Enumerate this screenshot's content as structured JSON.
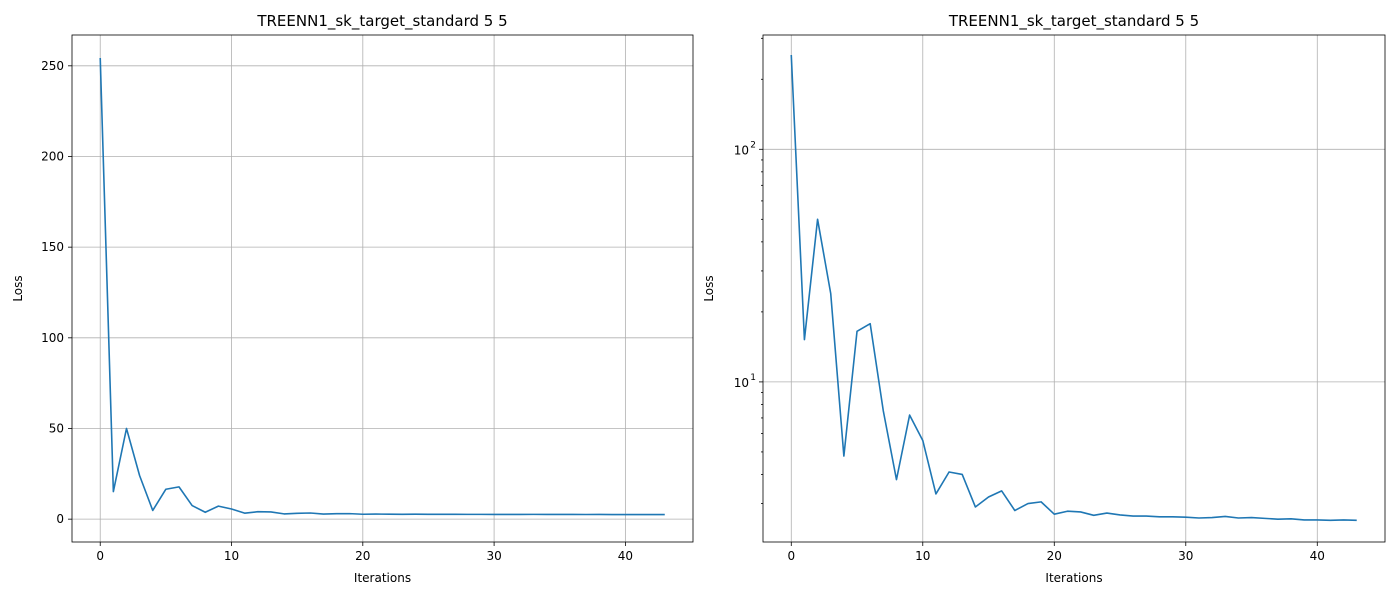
{
  "chart_data": [
    {
      "type": "line",
      "title": "TREENN1_sk_target_standard 5 5",
      "xlabel": "Iterations",
      "ylabel": "Loss",
      "yscale": "linear",
      "grid": true,
      "xlim": [
        -2.15,
        45.15
      ],
      "ylim": [
        -12.6,
        267.0
      ],
      "xticks": [
        0,
        10,
        20,
        30,
        40
      ],
      "yticks": [
        0,
        50,
        100,
        150,
        200,
        250
      ],
      "series": [
        {
          "color": "#1f77b4",
          "x": [
            0,
            1,
            2,
            3,
            4,
            5,
            6,
            7,
            8,
            9,
            10,
            11,
            12,
            13,
            14,
            15,
            16,
            17,
            18,
            19,
            20,
            21,
            22,
            23,
            24,
            25,
            26,
            27,
            28,
            29,
            30,
            31,
            32,
            33,
            34,
            35,
            36,
            37,
            38,
            39,
            40,
            41,
            42,
            43
          ],
          "values": [
            254.3,
            15.2,
            50.0,
            24.0,
            4.8,
            16.5,
            17.8,
            7.5,
            3.8,
            7.2,
            5.6,
            3.3,
            4.1,
            4.0,
            2.9,
            3.2,
            3.4,
            2.8,
            3.0,
            3.05,
            2.7,
            2.78,
            2.76,
            2.67,
            2.73,
            2.68,
            2.65,
            2.65,
            2.63,
            2.63,
            2.62,
            2.6,
            2.61,
            2.64,
            2.6,
            2.61,
            2.59,
            2.57,
            2.58,
            2.55,
            2.55,
            2.54,
            2.55,
            2.54
          ]
        }
      ]
    },
    {
      "type": "line",
      "title": "TREENN1_sk_target_standard 5 5",
      "xlabel": "Iterations",
      "ylabel": "Loss",
      "yscale": "log",
      "grid": true,
      "xlim": [
        -2.15,
        45.15
      ],
      "ylim": [
        2.05,
        310
      ],
      "xticks": [
        0,
        10,
        20,
        30,
        40
      ],
      "yticks": [
        10,
        100
      ],
      "ytick_labels": [
        {
          "base": "10",
          "exp": "1"
        },
        {
          "base": "10",
          "exp": "2"
        }
      ],
      "series": [
        {
          "color": "#1f77b4",
          "x": [
            0,
            1,
            2,
            3,
            4,
            5,
            6,
            7,
            8,
            9,
            10,
            11,
            12,
            13,
            14,
            15,
            16,
            17,
            18,
            19,
            20,
            21,
            22,
            23,
            24,
            25,
            26,
            27,
            28,
            29,
            30,
            31,
            32,
            33,
            34,
            35,
            36,
            37,
            38,
            39,
            40,
            41,
            42,
            43
          ],
          "values": [
            254.3,
            15.2,
            50.0,
            24.0,
            4.8,
            16.5,
            17.8,
            7.5,
            3.8,
            7.2,
            5.6,
            3.3,
            4.1,
            4.0,
            2.9,
            3.2,
            3.4,
            2.8,
            3.0,
            3.05,
            2.7,
            2.78,
            2.76,
            2.67,
            2.73,
            2.68,
            2.65,
            2.65,
            2.63,
            2.63,
            2.62,
            2.6,
            2.61,
            2.64,
            2.6,
            2.61,
            2.59,
            2.57,
            2.58,
            2.55,
            2.55,
            2.54,
            2.55,
            2.54
          ]
        }
      ]
    }
  ]
}
